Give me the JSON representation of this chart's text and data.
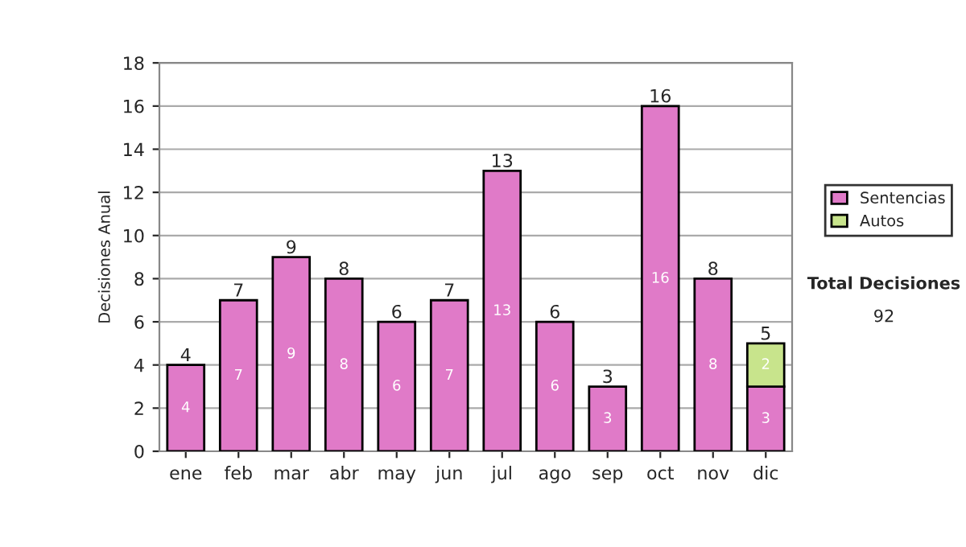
{
  "chart_data": {
    "type": "bar",
    "stacked": true,
    "ylabel": "Decisiones Anual",
    "categories": [
      "ene",
      "feb",
      "mar",
      "abr",
      "may",
      "jun",
      "jul",
      "ago",
      "sep",
      "oct",
      "nov",
      "dic"
    ],
    "series": [
      {
        "name": "Sentencias",
        "color": "#e07ac8",
        "values": [
          4,
          7,
          9,
          8,
          6,
          7,
          13,
          6,
          3,
          16,
          8,
          3
        ],
        "value_labels": [
          "4",
          "7",
          "9",
          "8",
          "6",
          "7",
          "13",
          "6",
          "3",
          "16",
          "8",
          "3"
        ]
      },
      {
        "name": "Autos",
        "color": "#c8e48c",
        "values": [
          0,
          0,
          0,
          0,
          0,
          0,
          0,
          0,
          0,
          0,
          0,
          2
        ],
        "value_labels": [
          null,
          null,
          null,
          null,
          null,
          null,
          null,
          null,
          null,
          null,
          null,
          "2"
        ]
      }
    ],
    "totals": [
      "4",
      "7",
      "9",
      "8",
      "6",
      "7",
      "13",
      "6",
      "3",
      "16",
      "8",
      "5"
    ],
    "ylim": [
      0,
      18
    ],
    "yticks": [
      0,
      2,
      4,
      6,
      8,
      10,
      12,
      14,
      16,
      18
    ],
    "grid": "y",
    "legend": "right",
    "annotations": [
      "Total Decisiones",
      "92"
    ]
  }
}
